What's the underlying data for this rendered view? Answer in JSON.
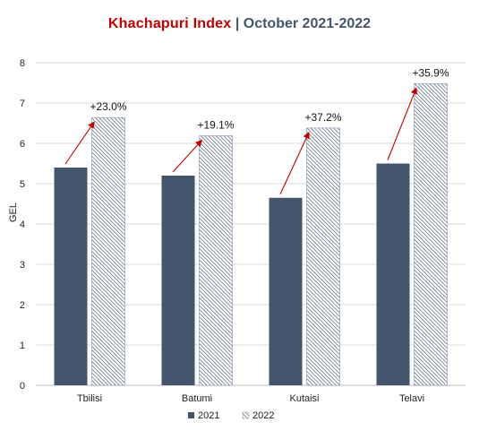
{
  "chart_data": {
    "type": "bar",
    "title_main": "Khachapuri  Index",
    "title_sep": " | ",
    "title_sub": "October  2021-2022",
    "ylabel": "GEL",
    "ylim": [
      0,
      8
    ],
    "yticks": [
      0,
      1,
      2,
      3,
      4,
      5,
      6,
      7,
      8
    ],
    "categories": [
      "Tbilisi",
      "Batumi",
      "Kutaisi",
      "Telavi"
    ],
    "series": [
      {
        "name": "2021",
        "values": [
          5.4,
          5.2,
          4.65,
          5.5
        ],
        "color": "#44546a",
        "pattern": "solid"
      },
      {
        "name": "2022",
        "values": [
          6.64,
          6.19,
          6.38,
          7.48
        ],
        "color": "#8497b0",
        "pattern": "hatched"
      }
    ],
    "change_labels": [
      "+23.0%",
      "+19.1%",
      "+37.2%",
      "+35.9%"
    ],
    "arrow_color": "#c00000",
    "grid": true,
    "legend_position": "bottom"
  }
}
